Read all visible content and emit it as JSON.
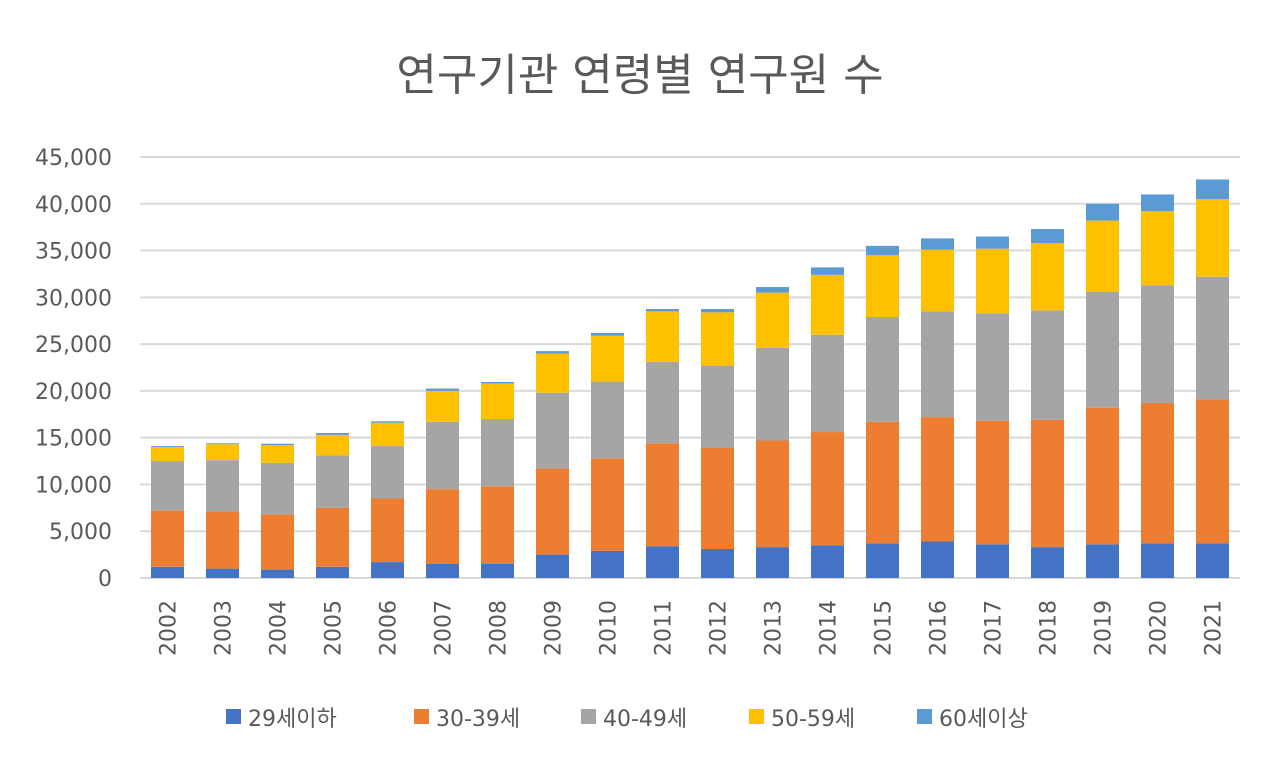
{
  "chart_data": {
    "type": "bar",
    "stacked": true,
    "title": "연구기관 연령별 연구원 수",
    "xlabel": "",
    "ylabel": "",
    "ylim": [
      0,
      45000
    ],
    "yticks": [
      "0",
      "5,000",
      "10,000",
      "15,000",
      "20,000",
      "25,000",
      "30,000",
      "35,000",
      "40,000",
      "45,000"
    ],
    "grid": true,
    "legend_position": "bottom",
    "categories": [
      "2002",
      "2003",
      "2004",
      "2005",
      "2006",
      "2007",
      "2008",
      "2009",
      "2010",
      "2011",
      "2012",
      "2013",
      "2014",
      "2015",
      "2016",
      "2017",
      "2018",
      "2019",
      "2020",
      "2021"
    ],
    "series": [
      {
        "name": "29세이하",
        "color": "#4472C4",
        "values": [
          1200,
          1000,
          900,
          1200,
          1700,
          1500,
          1500,
          2500,
          2900,
          3400,
          3100,
          3300,
          3500,
          3700,
          3900,
          3600,
          3300,
          3600,
          3700,
          3700
        ]
      },
      {
        "name": "30-39세",
        "color": "#ED7D31",
        "values": [
          6000,
          6100,
          5900,
          6300,
          6800,
          8000,
          8300,
          9200,
          9900,
          11000,
          10800,
          11400,
          12100,
          13000,
          13300,
          13200,
          13600,
          14600,
          15000,
          15400
        ]
      },
      {
        "name": "40-49세",
        "color": "#A5A5A5",
        "values": [
          5300,
          5500,
          5500,
          5600,
          5600,
          7200,
          7200,
          8100,
          8200,
          8700,
          8800,
          9900,
          10400,
          11200,
          11300,
          11500,
          11700,
          12400,
          12600,
          13100
        ]
      },
      {
        "name": "50-59세",
        "color": "#FFC000",
        "values": [
          1500,
          1700,
          1900,
          2200,
          2500,
          3300,
          3800,
          4200,
          4900,
          5400,
          5700,
          5900,
          6400,
          6600,
          6600,
          6900,
          7200,
          7600,
          7900,
          8300
        ]
      },
      {
        "name": "60세이상",
        "color": "#5B9BD5",
        "values": [
          100,
          100,
          150,
          200,
          150,
          250,
          150,
          250,
          300,
          250,
          350,
          600,
          800,
          1000,
          1200,
          1300,
          1500,
          1800,
          1800,
          2100
        ]
      }
    ]
  }
}
